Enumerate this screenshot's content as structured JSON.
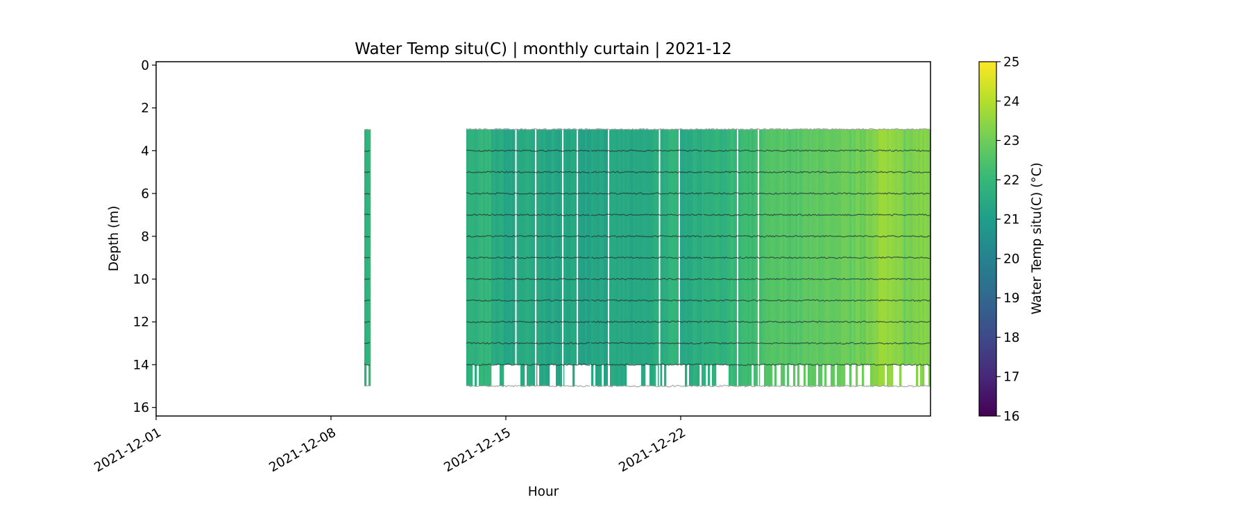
{
  "chart_data": {
    "type": "heatmap",
    "title": "Water Temp situ(C) | monthly curtain | 2021-12",
    "xlabel": "Hour",
    "ylabel": "Depth (m)",
    "colorbar_label": "Water Temp situ(C) (°C)",
    "colormap": "viridis",
    "clim": [
      16,
      25
    ],
    "colorbar_ticks": [
      "16",
      "17",
      "18",
      "19",
      "20",
      "21",
      "22",
      "23",
      "24",
      "25"
    ],
    "xlim": [
      "2021-12-01T00:00",
      "2022-01-01T00:00"
    ],
    "ylim": [
      16.4,
      -0.16
    ],
    "y_inverted": true,
    "xticks": [
      {
        "date": "2021-12-01",
        "label": "2021-12-01"
      },
      {
        "date": "2021-12-08",
        "label": "2021-12-08"
      },
      {
        "date": "2021-12-15",
        "label": "2021-12-15"
      },
      {
        "date": "2021-12-22",
        "label": "2021-12-22"
      }
    ],
    "yticks": [
      0,
      2,
      4,
      6,
      8,
      10,
      12,
      14,
      16
    ],
    "sensor_depths_m": [
      3,
      4,
      5,
      6,
      7,
      8,
      9,
      10,
      11,
      12,
      13,
      14,
      15
    ],
    "grid": false,
    "columns": [
      {
        "start": "2021-12-09T08:00",
        "end": "2021-12-09T14:00",
        "temp": 21.9,
        "top": 3,
        "bottom": 15
      },
      {
        "start": "2021-12-13T10:00",
        "end": "2021-12-13T22:00",
        "temp": 21.7,
        "top": 3,
        "bottom": 15
      },
      {
        "start": "2021-12-13T22:00",
        "end": "2021-12-14T10:00",
        "temp": 21.9,
        "top": 3,
        "bottom": 15
      },
      {
        "start": "2021-12-14T10:00",
        "end": "2021-12-14T22:00",
        "temp": 21.5,
        "top": 3,
        "bottom": 15
      },
      {
        "start": "2021-12-14T22:00",
        "end": "2021-12-15T10:00",
        "temp": 21.3,
        "top": 3,
        "bottom": 14
      },
      {
        "start": "2021-12-15T10:00",
        "end": "2021-12-15T22:00",
        "temp": 21.5,
        "top": 3,
        "bottom": 15
      },
      {
        "start": "2021-12-15T22:00",
        "end": "2021-12-16T10:00",
        "temp": 21.4,
        "top": 3,
        "bottom": 15
      },
      {
        "start": "2021-12-16T10:00",
        "end": "2021-12-16T22:00",
        "temp": 21.4,
        "top": 3,
        "bottom": 15
      },
      {
        "start": "2021-12-16T22:00",
        "end": "2021-12-17T10:00",
        "temp": 21.3,
        "top": 3,
        "bottom": 15
      },
      {
        "start": "2021-12-17T10:00",
        "end": "2021-12-17T22:00",
        "temp": 21.4,
        "top": 3,
        "bottom": 15
      },
      {
        "start": "2021-12-17T22:00",
        "end": "2021-12-18T10:00",
        "temp": 21.3,
        "top": 3,
        "bottom": 14
      },
      {
        "start": "2021-12-18T10:00",
        "end": "2021-12-18T22:00",
        "temp": 21.4,
        "top": 3,
        "bottom": 15
      },
      {
        "start": "2021-12-18T22:00",
        "end": "2021-12-19T10:00",
        "temp": 21.3,
        "top": 3,
        "bottom": 15
      },
      {
        "start": "2021-12-19T10:00",
        "end": "2021-12-19T22:00",
        "temp": 21.4,
        "top": 3,
        "bottom": 15
      },
      {
        "start": "2021-12-19T22:00",
        "end": "2021-12-20T10:00",
        "temp": 21.3,
        "top": 3,
        "bottom": 14
      },
      {
        "start": "2021-12-20T10:00",
        "end": "2021-12-20T22:00",
        "temp": 21.4,
        "top": 3,
        "bottom": 15
      },
      {
        "start": "2021-12-20T22:00",
        "end": "2021-12-21T10:00",
        "temp": 21.6,
        "top": 3,
        "bottom": 15
      },
      {
        "start": "2021-12-21T10:00",
        "end": "2021-12-21T22:00",
        "temp": 21.8,
        "top": 3,
        "bottom": 14
      },
      {
        "start": "2021-12-21T22:00",
        "end": "2021-12-22T10:00",
        "temp": 21.5,
        "top": 3,
        "bottom": 15
      },
      {
        "start": "2021-12-22T10:00",
        "end": "2021-12-22T22:00",
        "temp": 21.6,
        "top": 3,
        "bottom": 15
      },
      {
        "start": "2021-12-22T22:00",
        "end": "2021-12-23T10:00",
        "temp": 21.8,
        "top": 3,
        "bottom": 15
      },
      {
        "start": "2021-12-23T10:00",
        "end": "2021-12-23T22:00",
        "temp": 21.8,
        "top": 3,
        "bottom": 14
      },
      {
        "start": "2021-12-23T22:00",
        "end": "2021-12-24T10:00",
        "temp": 22.0,
        "top": 3,
        "bottom": 15
      },
      {
        "start": "2021-12-24T10:00",
        "end": "2021-12-24T22:00",
        "temp": 22.1,
        "top": 3,
        "bottom": 15
      },
      {
        "start": "2021-12-24T22:00",
        "end": "2021-12-25T10:00",
        "temp": 22.3,
        "top": 3,
        "bottom": 15
      },
      {
        "start": "2021-12-25T10:00",
        "end": "2021-12-25T22:00",
        "temp": 22.5,
        "top": 3,
        "bottom": 15
      },
      {
        "start": "2021-12-25T22:00",
        "end": "2021-12-26T10:00",
        "temp": 22.6,
        "top": 3,
        "bottom": 15
      },
      {
        "start": "2021-12-26T10:00",
        "end": "2021-12-26T22:00",
        "temp": 22.6,
        "top": 3,
        "bottom": 15
      },
      {
        "start": "2021-12-26T22:00",
        "end": "2021-12-27T10:00",
        "temp": 22.7,
        "top": 3,
        "bottom": 15
      },
      {
        "start": "2021-12-27T10:00",
        "end": "2021-12-27T22:00",
        "temp": 22.8,
        "top": 3,
        "bottom": 15
      },
      {
        "start": "2021-12-27T22:00",
        "end": "2021-12-28T10:00",
        "temp": 22.7,
        "top": 3,
        "bottom": 15
      },
      {
        "start": "2021-12-28T10:00",
        "end": "2021-12-28T22:00",
        "temp": 22.9,
        "top": 3,
        "bottom": 15
      },
      {
        "start": "2021-12-28T22:00",
        "end": "2021-12-29T10:00",
        "temp": 23.0,
        "top": 3,
        "bottom": 15
      },
      {
        "start": "2021-12-29T10:00",
        "end": "2021-12-29T22:00",
        "temp": 23.3,
        "top": 3,
        "bottom": 15
      },
      {
        "start": "2021-12-29T22:00",
        "end": "2021-12-30T10:00",
        "temp": 23.6,
        "top": 3,
        "bottom": 15
      },
      {
        "start": "2021-12-30T10:00",
        "end": "2021-12-30T22:00",
        "temp": 23.5,
        "top": 3,
        "bottom": 15
      },
      {
        "start": "2021-12-30T22:00",
        "end": "2021-12-31T10:00",
        "temp": 23.1,
        "top": 3,
        "bottom": 14
      },
      {
        "start": "2021-12-31T10:00",
        "end": "2022-01-01T00:00",
        "temp": 23.3,
        "top": 3,
        "bottom": 15
      }
    ],
    "gaps": [
      "2021-12-15T09:00",
      "2021-12-16T04:00",
      "2021-12-17T06:00",
      "2021-12-17T20:00",
      "2021-12-19T02:00",
      "2021-12-21T03:00",
      "2021-12-21T22:00",
      "2021-12-24T06:00",
      "2021-12-25T02:00"
    ]
  }
}
